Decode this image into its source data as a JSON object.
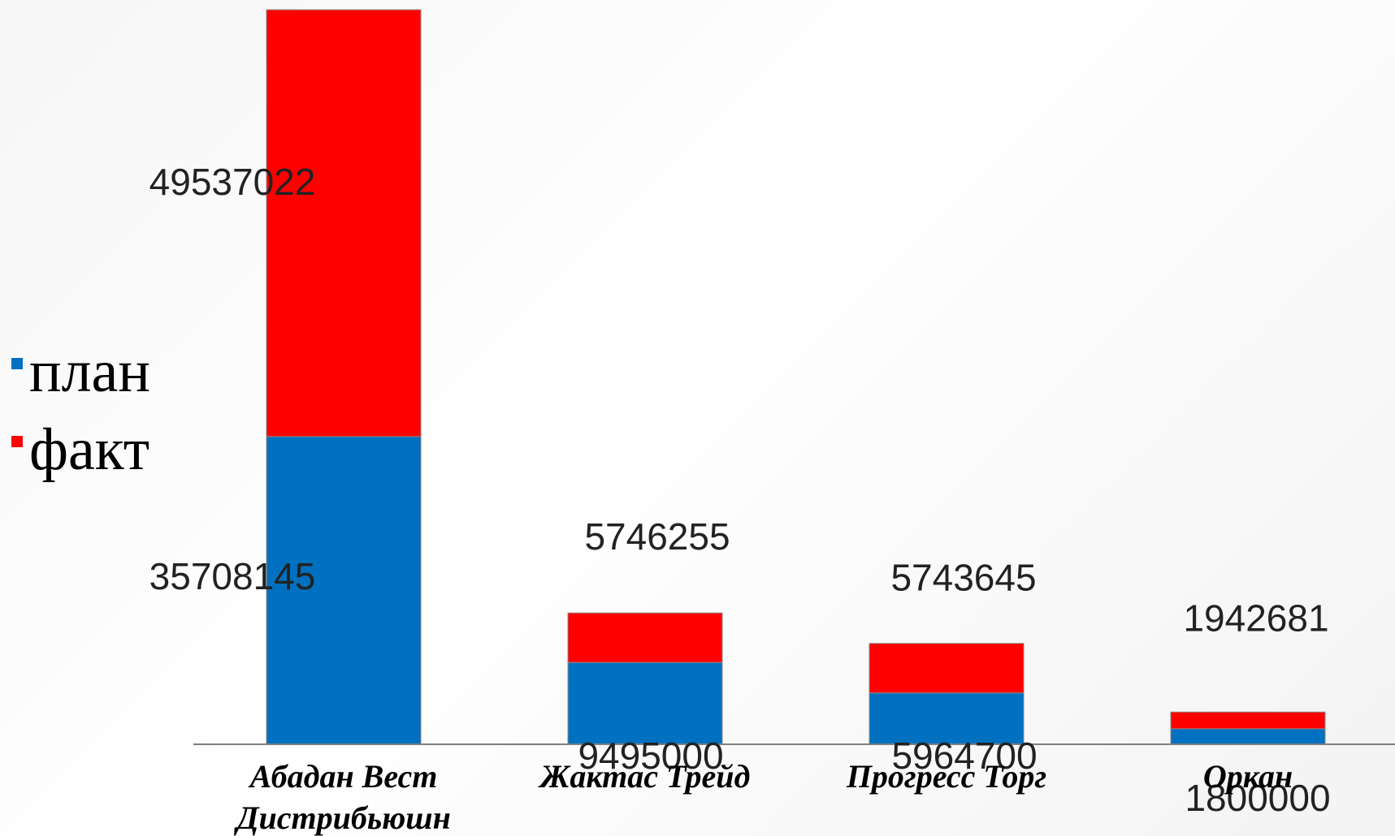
{
  "colors": {
    "plan": "#0070c0",
    "fact": "#ff0000",
    "axis": "#7f7f7f"
  },
  "chart_data": {
    "type": "bar",
    "stacked": true,
    "categories": [
      "Абадан Вест Дистрибьюшн",
      "Жактас Трейд",
      "Прогресс  Торг",
      "Оркан"
    ],
    "category_lines": [
      [
        "Абадан Вест",
        "Дистрибьюшн"
      ],
      [
        "Жактас Трейд"
      ],
      [
        "Прогресс  Торг"
      ],
      [
        "Оркан"
      ]
    ],
    "series": [
      {
        "name": "план",
        "color": "#0070c0",
        "values": [
          35708145,
          9495000,
          5964700,
          1800000
        ]
      },
      {
        "name": "факт",
        "color": "#ff0000",
        "values": [
          49537022,
          5746255,
          5743645,
          1942681
        ]
      }
    ],
    "ylim": [
      0,
      85245167
    ],
    "legend_position": "left",
    "grid": false
  }
}
